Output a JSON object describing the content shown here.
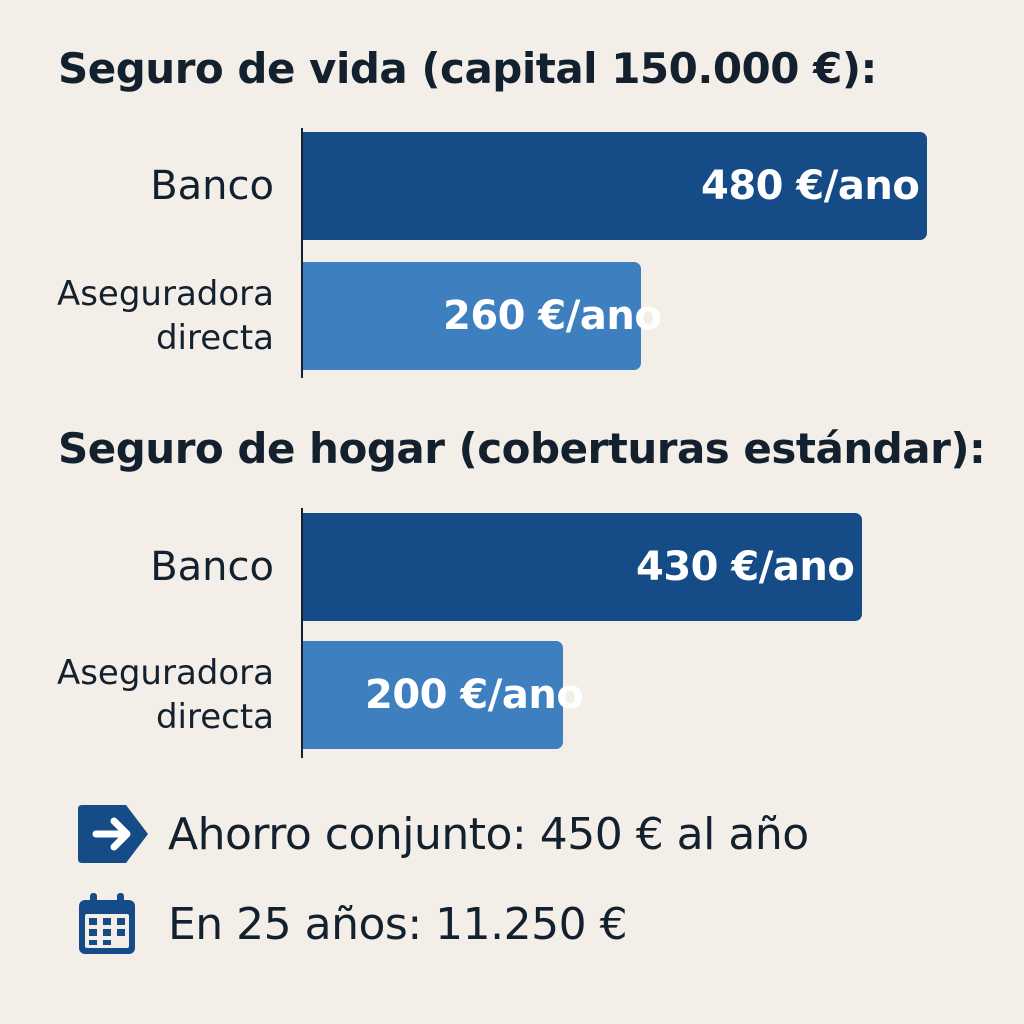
{
  "colors": {
    "bank": "#154b86",
    "direct": "#3e7fbf",
    "text": "#13202e",
    "background": "#f3eee8"
  },
  "chart_data": [
    {
      "type": "bar",
      "orientation": "horizontal",
      "title": "Seguro de vida (capital 150.000 €):",
      "categories": [
        "Banco",
        "Aseguradora directa"
      ],
      "values": [
        480,
        260
      ],
      "value_labels": [
        "480 €/ano",
        "260 €/ano"
      ],
      "unit": "€/ano",
      "xlim": [
        0,
        500
      ],
      "grid": false,
      "legend": "none"
    },
    {
      "type": "bar",
      "orientation": "horizontal",
      "title": "Seguro de hogar (coberturas estándar):",
      "categories": [
        "Banco",
        "Aseguradora directa"
      ],
      "values": [
        430,
        200
      ],
      "value_labels": [
        "430 €/ano",
        "200 €/ano"
      ],
      "unit": "€/ano",
      "xlim": [
        0,
        500
      ],
      "grid": false,
      "legend": "none"
    }
  ],
  "summary": {
    "savings": {
      "text": "Ahorro conjunto: 450 € al año",
      "icon": "arrow-right-icon"
    },
    "long_term": {
      "text": "En 25 años: 11.250 €",
      "icon": "calendar-icon"
    }
  }
}
